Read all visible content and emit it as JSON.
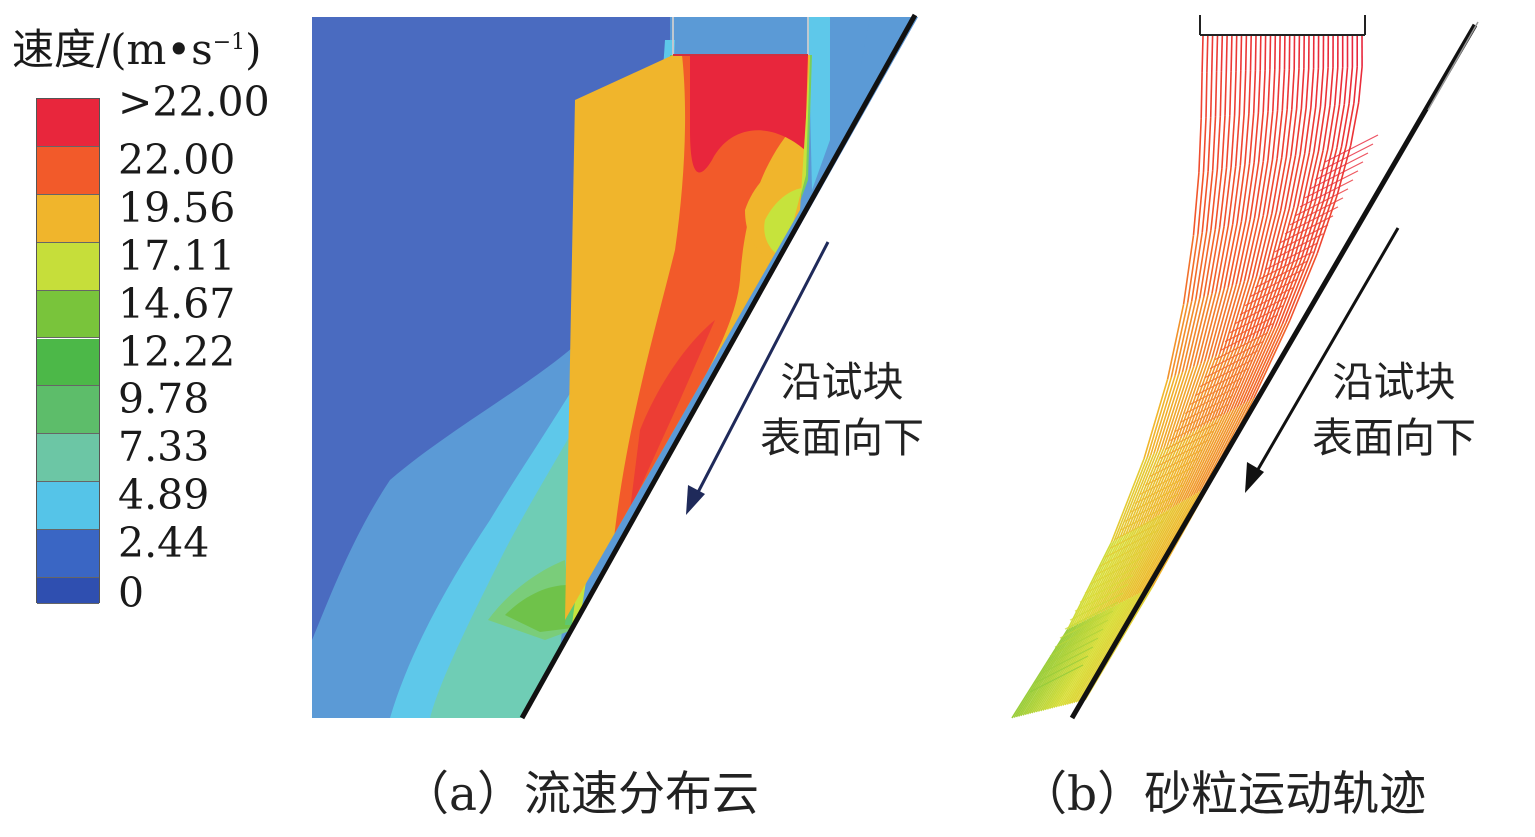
{
  "legend": {
    "title": "速度/(m•s",
    "title_sup": "−1",
    "title_close": ")",
    "labels": [
      ">22.00",
      "22.00",
      "19.56",
      "17.11",
      "14.67",
      "12.22",
      "9.78",
      "7.33",
      "4.89",
      "2.44",
      "0"
    ],
    "colors": [
      "#e8263c",
      "#f25a2a",
      "#f0b52c",
      "#c6de3a",
      "#79c43b",
      "#4cb848",
      "#5dbd6a",
      "#6cc6a5",
      "#55c4e8",
      "#3a66c4",
      "#2f4fb0"
    ]
  },
  "panel_a": {
    "annotation_line1": "沿试块",
    "annotation_line2": "表面向下",
    "caption": "（a）流速分布云"
  },
  "panel_b": {
    "annotation_line1": "沿试块",
    "annotation_line2": "表面向下",
    "caption": "（b）砂粒运动轨迹"
  }
}
